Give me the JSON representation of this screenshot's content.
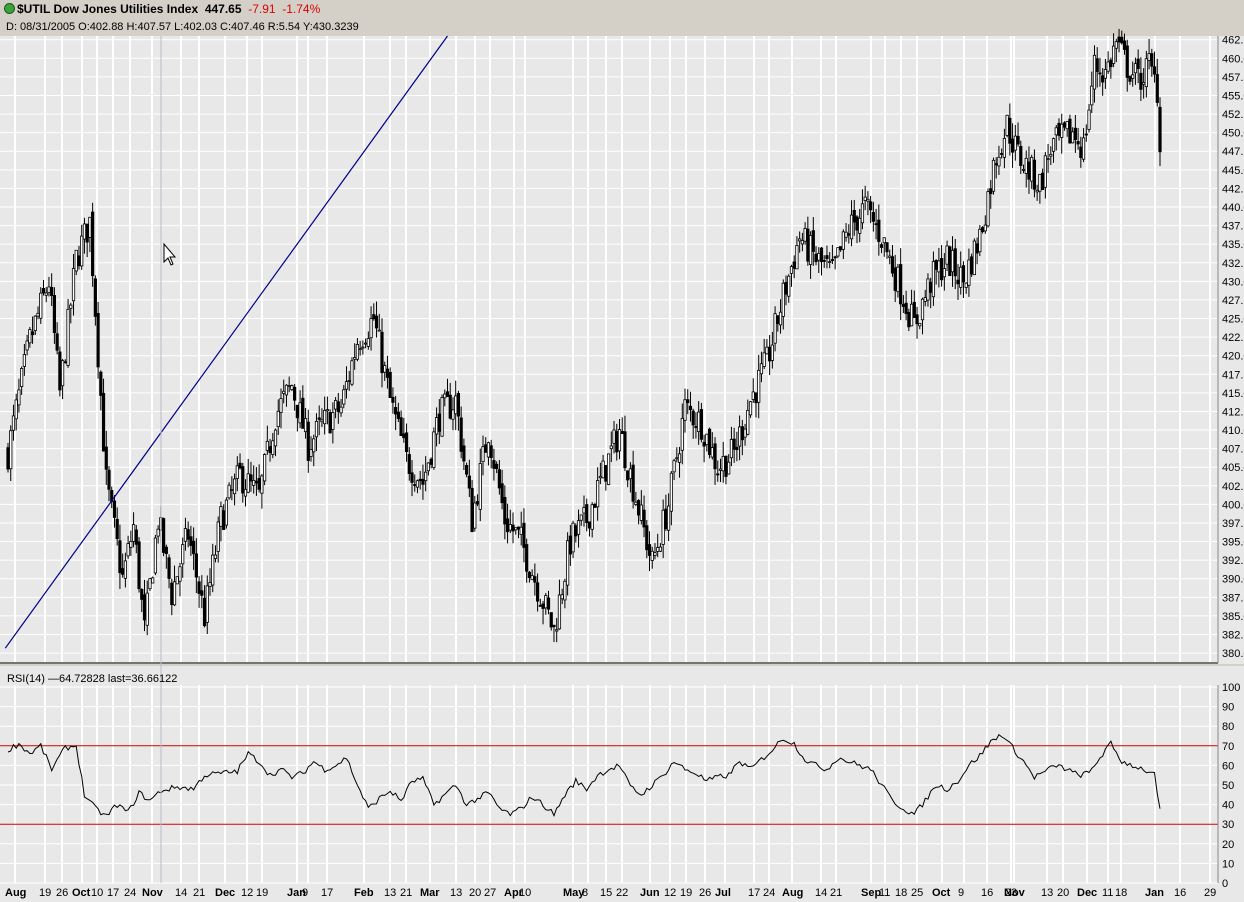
{
  "header": {
    "symbol_title": "$UTIL Dow Jones Utilities Index",
    "last": "447.65",
    "change": "-7.91",
    "pct_change": "-1.74%",
    "ohlc_line": "D: 08/31/2005 O:402.88 H:407.57 L:402.03 C:407.46 R:5.54 Y:430.3239"
  },
  "rsi_panel": {
    "label": "RSI(14) —64.72828 last=36.66122"
  },
  "colors": {
    "background": "#e8e8e8",
    "grid": "#ffffff",
    "candle": "#000000",
    "trendline": "#00008b",
    "rsi_band": "#cc0000"
  },
  "chart_data": [
    {
      "type": "candlestick",
      "title": "$UTIL Dow Jones Utilities Index",
      "y_axis_side": "right",
      "ylim": [
        378.8,
        463.0
      ],
      "y_ticks": [
        "462.5",
        "460.0",
        "457.5",
        "455.0",
        "452.5",
        "450.0",
        "447.5",
        "445.0",
        "442.5",
        "440.0",
        "437.5",
        "435.0",
        "432.5",
        "430.0",
        "427.5",
        "425.0",
        "422.5",
        "420.0",
        "417.5",
        "415.0",
        "412.5",
        "410.0",
        "407.5",
        "405.0",
        "402.5",
        "400.0",
        "397.5",
        "395.0",
        "392.5",
        "390.0",
        "387.5",
        "385.0",
        "382.5",
        "380.0"
      ],
      "x_ticks": [
        {
          "label": "Aug",
          "bold": true
        },
        {
          "label": "19",
          "bold": false
        },
        {
          "label": "26",
          "bold": false
        },
        {
          "label": "Oct",
          "bold": true
        },
        {
          "label": "10",
          "bold": false
        },
        {
          "label": "17",
          "bold": false
        },
        {
          "label": "24",
          "bold": false
        },
        {
          "label": "Nov",
          "bold": true
        },
        {
          "label": "14",
          "bold": false
        },
        {
          "label": "21",
          "bold": false
        },
        {
          "label": "Dec",
          "bold": true
        },
        {
          "label": "12",
          "bold": false
        },
        {
          "label": "19",
          "bold": false
        },
        {
          "label": "Jan",
          "bold": true
        },
        {
          "label": "9",
          "bold": false
        },
        {
          "label": "17",
          "bold": false
        },
        {
          "label": "Feb",
          "bold": true
        },
        {
          "label": "13",
          "bold": false
        },
        {
          "label": "21",
          "bold": false
        },
        {
          "label": "Mar",
          "bold": true
        },
        {
          "label": "13",
          "bold": false
        },
        {
          "label": "20",
          "bold": false
        },
        {
          "label": "27",
          "bold": false
        },
        {
          "label": "Apr",
          "bold": true
        },
        {
          "label": "10",
          "bold": false
        },
        {
          "label": "May",
          "bold": true
        },
        {
          "label": "8",
          "bold": false
        },
        {
          "label": "15",
          "bold": false
        },
        {
          "label": "22",
          "bold": false
        },
        {
          "label": "Jun",
          "bold": true
        },
        {
          "label": "12",
          "bold": false
        },
        {
          "label": "19",
          "bold": false
        },
        {
          "label": "26",
          "bold": false
        },
        {
          "label": "Jul",
          "bold": true
        },
        {
          "label": "17",
          "bold": false
        },
        {
          "label": "24",
          "bold": false
        },
        {
          "label": "Aug",
          "bold": true
        },
        {
          "label": "14",
          "bold": false
        },
        {
          "label": "21",
          "bold": false
        },
        {
          "label": "Sep",
          "bold": true
        },
        {
          "label": "11",
          "bold": false
        },
        {
          "label": "18",
          "bold": false
        },
        {
          "label": "25",
          "bold": false
        },
        {
          "label": "Oct",
          "bold": true
        },
        {
          "label": "9",
          "bold": false
        },
        {
          "label": "16",
          "bold": false
        },
        {
          "label": "23",
          "bold": false
        },
        {
          "label": "Nov",
          "bold": true
        },
        {
          "label": "13",
          "bold": false
        },
        {
          "label": "20",
          "bold": false
        },
        {
          "label": "Dec",
          "bold": true
        },
        {
          "label": "11",
          "bold": false
        },
        {
          "label": "18",
          "bold": false
        },
        {
          "label": "Jan",
          "bold": true
        },
        {
          "label": "16",
          "bold": false
        },
        {
          "label": "29",
          "bold": false
        }
      ],
      "close_anchors": [
        {
          "bar": 0,
          "value": 407
        },
        {
          "bar": 8,
          "value": 422
        },
        {
          "bar": 15,
          "value": 430
        },
        {
          "bar": 19,
          "value": 415
        },
        {
          "bar": 25,
          "value": 433
        },
        {
          "bar": 30,
          "value": 438
        },
        {
          "bar": 36,
          "value": 403
        },
        {
          "bar": 42,
          "value": 390
        },
        {
          "bar": 46,
          "value": 397
        },
        {
          "bar": 50,
          "value": 383
        },
        {
          "bar": 55,
          "value": 398
        },
        {
          "bar": 60,
          "value": 388
        },
        {
          "bar": 66,
          "value": 396
        },
        {
          "bar": 72,
          "value": 385
        },
        {
          "bar": 78,
          "value": 398
        },
        {
          "bar": 85,
          "value": 404
        },
        {
          "bar": 92,
          "value": 401
        },
        {
          "bar": 98,
          "value": 412
        },
        {
          "bar": 104,
          "value": 416
        },
        {
          "bar": 110,
          "value": 408
        },
        {
          "bar": 116,
          "value": 411
        },
        {
          "bar": 122,
          "value": 413
        },
        {
          "bar": 128,
          "value": 422
        },
        {
          "bar": 134,
          "value": 425
        },
        {
          "bar": 140,
          "value": 414
        },
        {
          "bar": 146,
          "value": 406
        },
        {
          "bar": 152,
          "value": 403
        },
        {
          "bar": 158,
          "value": 412
        },
        {
          "bar": 164,
          "value": 414
        },
        {
          "bar": 170,
          "value": 398
        },
        {
          "bar": 176,
          "value": 410
        },
        {
          "bar": 182,
          "value": 398
        },
        {
          "bar": 188,
          "value": 395
        },
        {
          "bar": 194,
          "value": 389
        },
        {
          "bar": 200,
          "value": 383
        },
        {
          "bar": 206,
          "value": 395
        },
        {
          "bar": 212,
          "value": 398
        },
        {
          "bar": 218,
          "value": 404
        },
        {
          "bar": 224,
          "value": 410
        },
        {
          "bar": 230,
          "value": 401
        },
        {
          "bar": 236,
          "value": 392
        },
        {
          "bar": 242,
          "value": 400
        },
        {
          "bar": 248,
          "value": 413
        },
        {
          "bar": 254,
          "value": 411
        },
        {
          "bar": 260,
          "value": 405
        },
        {
          "bar": 266,
          "value": 407
        },
        {
          "bar": 272,
          "value": 414
        },
        {
          "bar": 278,
          "value": 419
        },
        {
          "bar": 284,
          "value": 428
        },
        {
          "bar": 290,
          "value": 436
        },
        {
          "bar": 296,
          "value": 433
        },
        {
          "bar": 302,
          "value": 431
        },
        {
          "bar": 308,
          "value": 437
        },
        {
          "bar": 314,
          "value": 440
        },
        {
          "bar": 320,
          "value": 436
        },
        {
          "bar": 326,
          "value": 430
        },
        {
          "bar": 332,
          "value": 424
        },
        {
          "bar": 338,
          "value": 430
        },
        {
          "bar": 344,
          "value": 433
        },
        {
          "bar": 350,
          "value": 430
        },
        {
          "bar": 356,
          "value": 436
        },
        {
          "bar": 362,
          "value": 447
        },
        {
          "bar": 366,
          "value": 451
        },
        {
          "bar": 370,
          "value": 447
        },
        {
          "bar": 374,
          "value": 445
        },
        {
          "bar": 378,
          "value": 443
        },
        {
          "bar": 382,
          "value": 448
        },
        {
          "bar": 386,
          "value": 449
        },
        {
          "bar": 390,
          "value": 450
        },
        {
          "bar": 394,
          "value": 448
        },
        {
          "bar": 398,
          "value": 459
        },
        {
          "bar": 402,
          "value": 458
        },
        {
          "bar": 406,
          "value": 462
        },
        {
          "bar": 410,
          "value": 459
        },
        {
          "bar": 414,
          "value": 457
        },
        {
          "bar": 418,
          "value": 459
        },
        {
          "bar": 421,
          "value": 456
        },
        {
          "bar": 422,
          "value": 447.65
        }
      ],
      "trendline": {
        "x0_bar": -1,
        "y0": 382.0,
        "x1_bar": 161,
        "y1": 463.0
      }
    },
    {
      "type": "line",
      "title": "RSI(14)",
      "ylim": [
        0,
        100
      ],
      "y_ticks": [
        "100",
        "90",
        "80",
        "70",
        "60",
        "50",
        "40",
        "30",
        "20",
        "10",
        "0"
      ],
      "bands": [
        70,
        30
      ],
      "last": 36.66122,
      "values_sampled": [
        {
          "bar": 0,
          "value": 68
        },
        {
          "bar": 4,
          "value": 71
        },
        {
          "bar": 8,
          "value": 66
        },
        {
          "bar": 12,
          "value": 70
        },
        {
          "bar": 16,
          "value": 58
        },
        {
          "bar": 21,
          "value": 69
        },
        {
          "bar": 25,
          "value": 70
        },
        {
          "bar": 28,
          "value": 45
        },
        {
          "bar": 32,
          "value": 38
        },
        {
          "bar": 36,
          "value": 34
        },
        {
          "bar": 40,
          "value": 40
        },
        {
          "bar": 44,
          "value": 36
        },
        {
          "bar": 48,
          "value": 46
        },
        {
          "bar": 52,
          "value": 42
        },
        {
          "bar": 56,
          "value": 47
        },
        {
          "bar": 62,
          "value": 49
        },
        {
          "bar": 68,
          "value": 48
        },
        {
          "bar": 72,
          "value": 55
        },
        {
          "bar": 78,
          "value": 56
        },
        {
          "bar": 84,
          "value": 57
        },
        {
          "bar": 88,
          "value": 66
        },
        {
          "bar": 92,
          "value": 62
        },
        {
          "bar": 96,
          "value": 55
        },
        {
          "bar": 100,
          "value": 58
        },
        {
          "bar": 104,
          "value": 54
        },
        {
          "bar": 108,
          "value": 56
        },
        {
          "bar": 112,
          "value": 62
        },
        {
          "bar": 116,
          "value": 58
        },
        {
          "bar": 120,
          "value": 60
        },
        {
          "bar": 124,
          "value": 64
        },
        {
          "bar": 128,
          "value": 50
        },
        {
          "bar": 132,
          "value": 38
        },
        {
          "bar": 136,
          "value": 43
        },
        {
          "bar": 140,
          "value": 47
        },
        {
          "bar": 144,
          "value": 42
        },
        {
          "bar": 148,
          "value": 52
        },
        {
          "bar": 152,
          "value": 53
        },
        {
          "bar": 156,
          "value": 40
        },
        {
          "bar": 160,
          "value": 45
        },
        {
          "bar": 164,
          "value": 50
        },
        {
          "bar": 168,
          "value": 40
        },
        {
          "bar": 172,
          "value": 43
        },
        {
          "bar": 176,
          "value": 46
        },
        {
          "bar": 180,
          "value": 38
        },
        {
          "bar": 184,
          "value": 35
        },
        {
          "bar": 188,
          "value": 38
        },
        {
          "bar": 192,
          "value": 44
        },
        {
          "bar": 196,
          "value": 40
        },
        {
          "bar": 200,
          "value": 35
        },
        {
          "bar": 204,
          "value": 45
        },
        {
          "bar": 208,
          "value": 52
        },
        {
          "bar": 212,
          "value": 48
        },
        {
          "bar": 216,
          "value": 55
        },
        {
          "bar": 220,
          "value": 58
        },
        {
          "bar": 224,
          "value": 60
        },
        {
          "bar": 228,
          "value": 49
        },
        {
          "bar": 232,
          "value": 45
        },
        {
          "bar": 236,
          "value": 50
        },
        {
          "bar": 240,
          "value": 55
        },
        {
          "bar": 244,
          "value": 62
        },
        {
          "bar": 248,
          "value": 58
        },
        {
          "bar": 252,
          "value": 56
        },
        {
          "bar": 256,
          "value": 52
        },
        {
          "bar": 260,
          "value": 54
        },
        {
          "bar": 264,
          "value": 55
        },
        {
          "bar": 268,
          "value": 62
        },
        {
          "bar": 272,
          "value": 58
        },
        {
          "bar": 276,
          "value": 63
        },
        {
          "bar": 280,
          "value": 68
        },
        {
          "bar": 284,
          "value": 74
        },
        {
          "bar": 288,
          "value": 71
        },
        {
          "bar": 292,
          "value": 63
        },
        {
          "bar": 296,
          "value": 60
        },
        {
          "bar": 300,
          "value": 58
        },
        {
          "bar": 304,
          "value": 64
        },
        {
          "bar": 308,
          "value": 62
        },
        {
          "bar": 312,
          "value": 60
        },
        {
          "bar": 316,
          "value": 58
        },
        {
          "bar": 320,
          "value": 50
        },
        {
          "bar": 324,
          "value": 42
        },
        {
          "bar": 328,
          "value": 38
        },
        {
          "bar": 332,
          "value": 35
        },
        {
          "bar": 336,
          "value": 42
        },
        {
          "bar": 340,
          "value": 50
        },
        {
          "bar": 344,
          "value": 48
        },
        {
          "bar": 348,
          "value": 52
        },
        {
          "bar": 352,
          "value": 60
        },
        {
          "bar": 356,
          "value": 65
        },
        {
          "bar": 360,
          "value": 72
        },
        {
          "bar": 364,
          "value": 76
        },
        {
          "bar": 368,
          "value": 69
        },
        {
          "bar": 372,
          "value": 62
        },
        {
          "bar": 376,
          "value": 54
        },
        {
          "bar": 380,
          "value": 57
        },
        {
          "bar": 384,
          "value": 60
        },
        {
          "bar": 388,
          "value": 58
        },
        {
          "bar": 392,
          "value": 55
        },
        {
          "bar": 396,
          "value": 56
        },
        {
          "bar": 400,
          "value": 64
        },
        {
          "bar": 404,
          "value": 71
        },
        {
          "bar": 408,
          "value": 62
        },
        {
          "bar": 412,
          "value": 60
        },
        {
          "bar": 416,
          "value": 58
        },
        {
          "bar": 420,
          "value": 55
        },
        {
          "bar": 422,
          "value": 36.66
        }
      ]
    }
  ]
}
